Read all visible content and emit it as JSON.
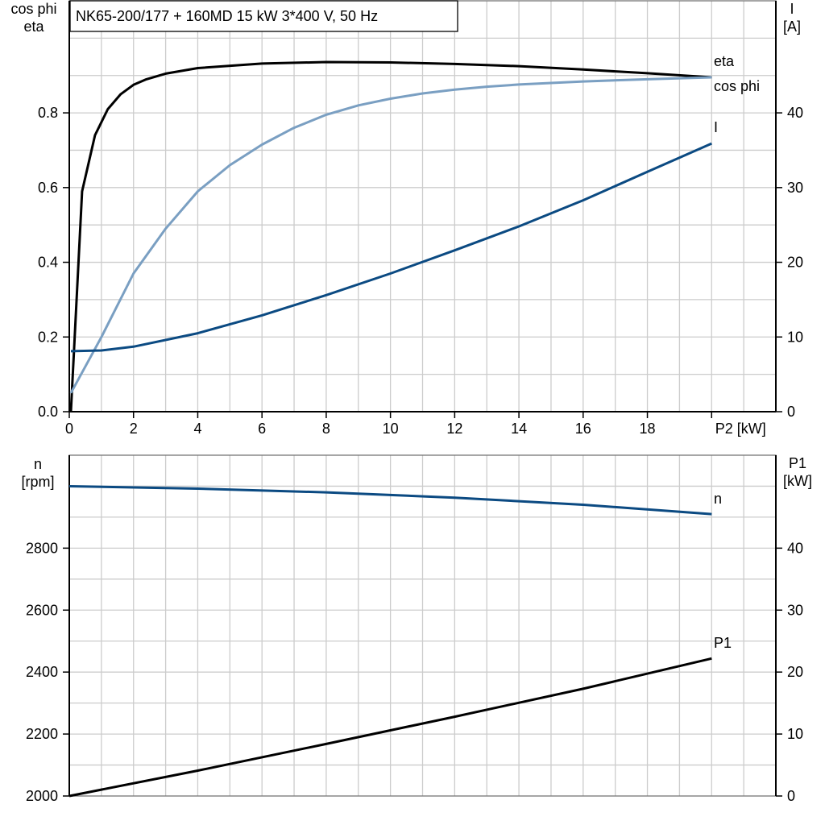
{
  "title": "NK65-200/177 + 160MD   15 kW   3*400 V, 50 Hz",
  "colors": {
    "eta": "#000000",
    "cos_phi": "#7a9fc2",
    "I": "#0b4a82",
    "n": "#0b4a82",
    "P1": "#000000",
    "grid": "#cccccc"
  },
  "chart_data": [
    {
      "type": "line",
      "xlabel": "P2 [kW]",
      "ylabel_left": [
        "cos phi",
        "eta"
      ],
      "ylabel_right": [
        "I",
        "[A]"
      ],
      "xlim": [
        0,
        22
      ],
      "ylim_left": [
        0,
        1.1
      ],
      "ylim_right": [
        0,
        55
      ],
      "x_ticks": [
        "0",
        "2",
        "4",
        "6",
        "8",
        "10",
        "12",
        "14",
        "16",
        "18"
      ],
      "y_ticks_left": [
        "0.0",
        "0.2",
        "0.4",
        "0.6",
        "0.8"
      ],
      "y_ticks_right": [
        "0",
        "10",
        "20",
        "30",
        "40"
      ],
      "grid": true,
      "series": [
        {
          "name": "eta",
          "axis": "left",
          "x": [
            0.05,
            0.4,
            0.8,
            1.2,
            1.6,
            2,
            2.4,
            3,
            4,
            6,
            8,
            10,
            12,
            14,
            16,
            18,
            20
          ],
          "y": [
            0,
            0.59,
            0.74,
            0.81,
            0.85,
            0.875,
            0.89,
            0.905,
            0.92,
            0.932,
            0.936,
            0.935,
            0.931,
            0.925,
            0.916,
            0.906,
            0.895
          ]
        },
        {
          "name": "cos phi",
          "axis": "left",
          "x": [
            0.05,
            1,
            2,
            3,
            4,
            5,
            6,
            7,
            8,
            9,
            10,
            11,
            12,
            13,
            14,
            16,
            18,
            20
          ],
          "y": [
            0.05,
            0.2,
            0.37,
            0.49,
            0.59,
            0.66,
            0.715,
            0.76,
            0.795,
            0.82,
            0.838,
            0.852,
            0.862,
            0.87,
            0.876,
            0.884,
            0.89,
            0.895
          ]
        },
        {
          "name": "I",
          "axis": "right",
          "x": [
            0.05,
            1,
            2,
            4,
            6,
            8,
            10,
            12,
            14,
            16,
            18,
            20
          ],
          "y": [
            8.1,
            8.2,
            8.7,
            10.5,
            12.9,
            15.6,
            18.5,
            21.6,
            24.8,
            28.3,
            32.1,
            35.9
          ]
        }
      ]
    },
    {
      "type": "line",
      "xlim": [
        0,
        22
      ],
      "ylabel_left": [
        "n",
        "[rpm]"
      ],
      "ylabel_right": [
        "P1",
        "[kW]"
      ],
      "ylim_left": [
        2000,
        3100
      ],
      "ylim_right": [
        0,
        55
      ],
      "y_ticks_left": [
        "2000",
        "2200",
        "2400",
        "2600",
        "2800"
      ],
      "y_ticks_right": [
        "0",
        "10",
        "20",
        "30",
        "40"
      ],
      "grid": true,
      "series": [
        {
          "name": "n",
          "axis": "left",
          "x": [
            0,
            4,
            8,
            12,
            16,
            20
          ],
          "y": [
            3000,
            2992,
            2980,
            2963,
            2940,
            2910
          ]
        },
        {
          "name": "P1",
          "axis": "right",
          "x": [
            0,
            4,
            8,
            12,
            16,
            20
          ],
          "y": [
            0,
            4.1,
            8.4,
            12.8,
            17.3,
            22.2
          ]
        }
      ]
    }
  ]
}
